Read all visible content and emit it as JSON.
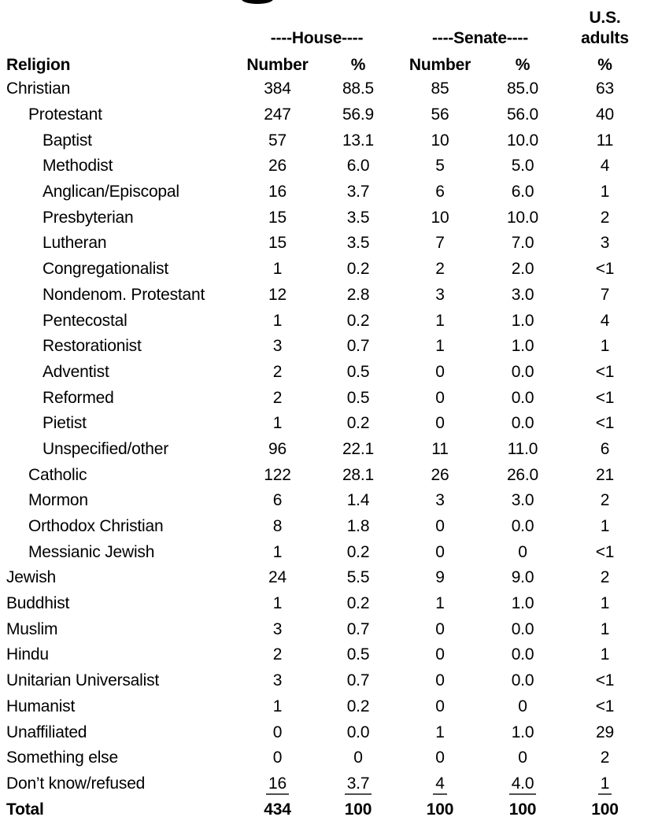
{
  "page": {
    "background": "#ffffff",
    "text_color": "#000000"
  },
  "header": {
    "religion_label": "Religion",
    "house_group_label": "----House----",
    "senate_group_label": "----Senate----",
    "us_adults_line1": "U.S.",
    "us_adults_line2": "adults",
    "house_number_label": "Number",
    "house_pct_label": "%",
    "senate_number_label": "Number",
    "senate_pct_label": "%",
    "us_adults_pct_label": "%"
  },
  "chart_data": {
    "type": "table",
    "column_groups": [
      "----House----",
      "----Senate----",
      "U.S. adults"
    ],
    "columns": [
      "Religion",
      "House Number",
      "House %",
      "Senate Number",
      "Senate %",
      "U.S. adults %"
    ],
    "rows": [
      {
        "label": "Christian",
        "indent": 0,
        "values": [
          "384",
          "88.5",
          "85",
          "85.0",
          "63"
        ]
      },
      {
        "label": "Protestant",
        "indent": 1,
        "values": [
          "247",
          "56.9",
          "56",
          "56.0",
          "40"
        ]
      },
      {
        "label": "Baptist",
        "indent": 2,
        "values": [
          "57",
          "13.1",
          "10",
          "10.0",
          "11"
        ]
      },
      {
        "label": "Methodist",
        "indent": 2,
        "values": [
          "26",
          "6.0",
          "5",
          "5.0",
          "4"
        ]
      },
      {
        "label": "Anglican/Episcopal",
        "indent": 2,
        "values": [
          "16",
          "3.7",
          "6",
          "6.0",
          "1"
        ]
      },
      {
        "label": "Presbyterian",
        "indent": 2,
        "values": [
          "15",
          "3.5",
          "10",
          "10.0",
          "2"
        ]
      },
      {
        "label": "Lutheran",
        "indent": 2,
        "values": [
          "15",
          "3.5",
          "7",
          "7.0",
          "3"
        ]
      },
      {
        "label": "Congregationalist",
        "indent": 2,
        "values": [
          "1",
          "0.2",
          "2",
          "2.0",
          "<1"
        ]
      },
      {
        "label": "Nondenom. Protestant",
        "indent": 2,
        "values": [
          "12",
          "2.8",
          "3",
          "3.0",
          "7"
        ]
      },
      {
        "label": "Pentecostal",
        "indent": 2,
        "values": [
          "1",
          "0.2",
          "1",
          "1.0",
          "4"
        ]
      },
      {
        "label": "Restorationist",
        "indent": 2,
        "values": [
          "3",
          "0.7",
          "1",
          "1.0",
          "1"
        ]
      },
      {
        "label": "Adventist",
        "indent": 2,
        "values": [
          "2",
          "0.5",
          "0",
          "0.0",
          "<1"
        ]
      },
      {
        "label": "Reformed",
        "indent": 2,
        "values": [
          "2",
          "0.5",
          "0",
          "0.0",
          "<1"
        ]
      },
      {
        "label": "Pietist",
        "indent": 2,
        "values": [
          "1",
          "0.2",
          "0",
          "0.0",
          "<1"
        ]
      },
      {
        "label": "Unspecified/other",
        "indent": 2,
        "values": [
          "96",
          "22.1",
          "11",
          "11.0",
          "6"
        ]
      },
      {
        "label": "Catholic",
        "indent": 1,
        "values": [
          "122",
          "28.1",
          "26",
          "26.0",
          "21"
        ]
      },
      {
        "label": "Mormon",
        "indent": 1,
        "values": [
          "6",
          "1.4",
          "3",
          "3.0",
          "2"
        ]
      },
      {
        "label": "Orthodox Christian",
        "indent": 1,
        "values": [
          "8",
          "1.8",
          "0",
          "0.0",
          "1"
        ]
      },
      {
        "label": "Messianic Jewish",
        "indent": 1,
        "values": [
          "1",
          "0.2",
          "0",
          "0",
          "<1"
        ]
      },
      {
        "label": "Jewish",
        "indent": 0,
        "values": [
          "24",
          "5.5",
          "9",
          "9.0",
          "2"
        ]
      },
      {
        "label": "Buddhist",
        "indent": 0,
        "values": [
          "1",
          "0.2",
          "1",
          "1.0",
          "1"
        ]
      },
      {
        "label": "Muslim",
        "indent": 0,
        "values": [
          "3",
          "0.7",
          "0",
          "0.0",
          "1"
        ]
      },
      {
        "label": "Hindu",
        "indent": 0,
        "values": [
          "2",
          "0.5",
          "0",
          "0.0",
          "1"
        ]
      },
      {
        "label": "Unitarian Universalist",
        "indent": 0,
        "values": [
          "3",
          "0.7",
          "0",
          "0.0",
          "<1"
        ]
      },
      {
        "label": "Humanist",
        "indent": 0,
        "values": [
          "1",
          "0.2",
          "0",
          "0",
          "<1"
        ]
      },
      {
        "label": "Unaffiliated",
        "indent": 0,
        "values": [
          "0",
          "0.0",
          "1",
          "1.0",
          "29"
        ]
      },
      {
        "label": "Something else",
        "indent": 0,
        "values": [
          "0",
          "0",
          "0",
          "0",
          "2"
        ]
      },
      {
        "label": "Don’t know/refused",
        "indent": 0,
        "values": [
          "16",
          "3.7",
          "4",
          "4.0",
          "1"
        ],
        "underline": true
      },
      {
        "label": "Total",
        "indent": 0,
        "values": [
          "434",
          "100",
          "100",
          "100",
          "100"
        ],
        "bold": true
      }
    ]
  }
}
